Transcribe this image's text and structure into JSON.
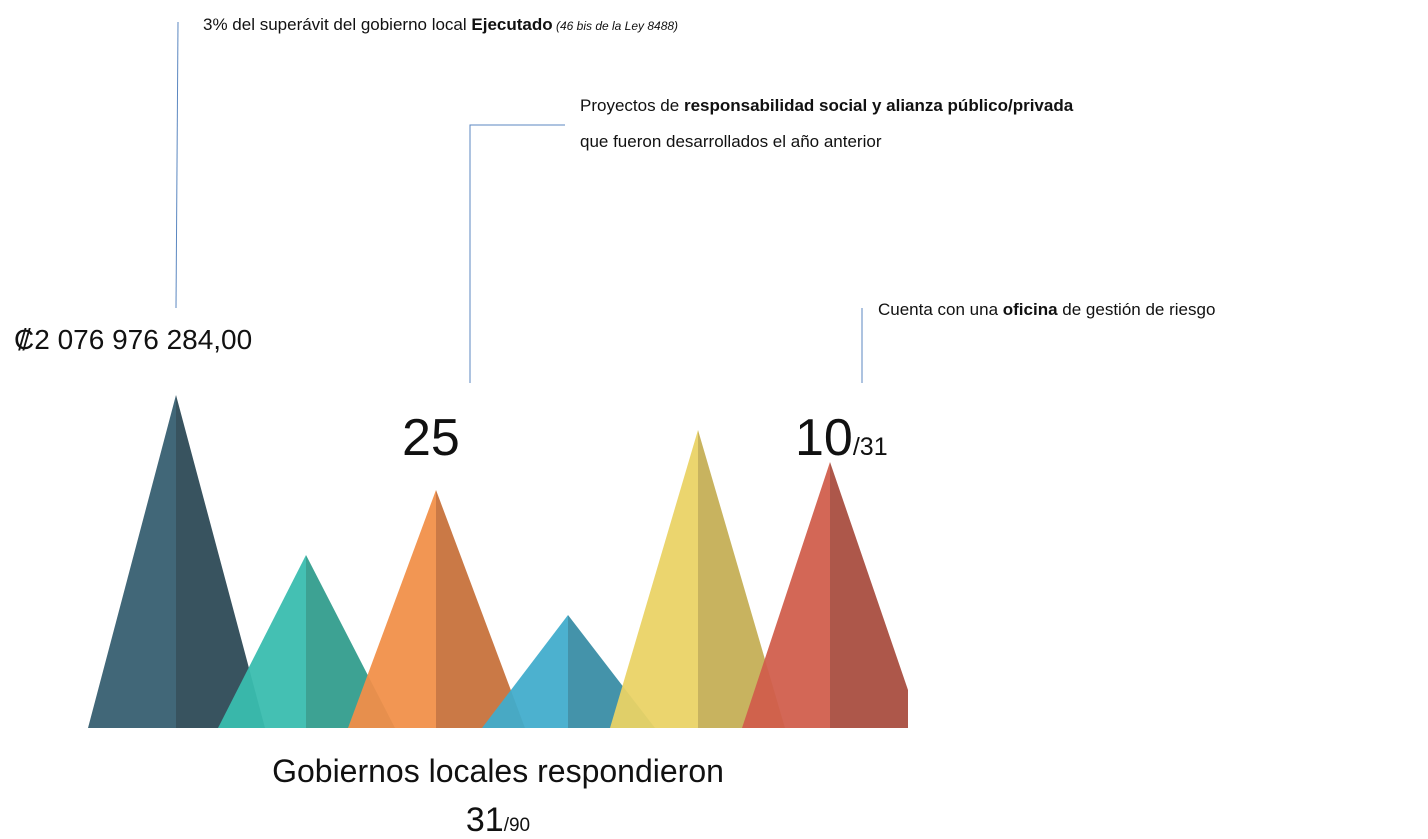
{
  "annotation_1": {
    "text": "3% del superávit del gobierno local ",
    "bold": "Ejecutado",
    "note": " (46 bis de la Ley 8488)"
  },
  "value_1": "₡2 076 976 284,00",
  "annotation_2": {
    "text": "Proyectos de ",
    "bold": "responsabilidad social y alianza público/privada",
    "line_2": "que fueron desarrollados el año anterior"
  },
  "value_2": "25",
  "annotation_3": {
    "text": "Cuenta con una ",
    "bold": "oficina",
    "text_end": " de gestión de riesgo"
  },
  "value_3": {
    "count": "10",
    "total": "/31"
  },
  "footer": {
    "label": "Gobiernos locales respondieron",
    "count": "31",
    "total": "/90"
  }
}
